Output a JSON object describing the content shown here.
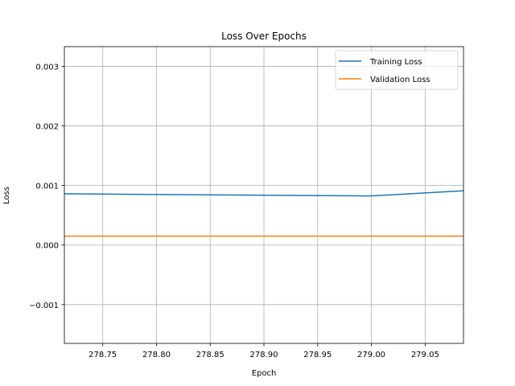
{
  "chart_data": {
    "type": "line",
    "title": "Loss Over Epochs",
    "xlabel": "Epoch",
    "ylabel": "Loss",
    "xlim": [
      278.7143,
      279.0857
    ],
    "ylim": [
      -0.00165,
      0.00333
    ],
    "xticks": [
      "278.75",
      "278.80",
      "278.85",
      "278.90",
      "278.95",
      "279.00",
      "279.05"
    ],
    "xtick_values": [
      278.75,
      278.8,
      278.85,
      278.9,
      278.95,
      279.0,
      279.05
    ],
    "yticks": [
      "−0.001",
      "0.000",
      "0.001",
      "0.002",
      "0.003"
    ],
    "ytick_values": [
      -0.001,
      0.0,
      0.001,
      0.002,
      0.003
    ],
    "grid": true,
    "legend": "top-right",
    "series": [
      {
        "name": "Training Loss",
        "color": "#1f77b4",
        "x": [
          278.7143,
          279.0,
          279.0857
        ],
        "y": [
          0.00086,
          0.000825,
          0.00091
        ]
      },
      {
        "name": "Validation Loss",
        "color": "#ff7f0e",
        "x": [
          278.7143,
          279.0,
          279.0857
        ],
        "y": [
          0.00015,
          0.00015,
          0.00015
        ]
      }
    ]
  }
}
